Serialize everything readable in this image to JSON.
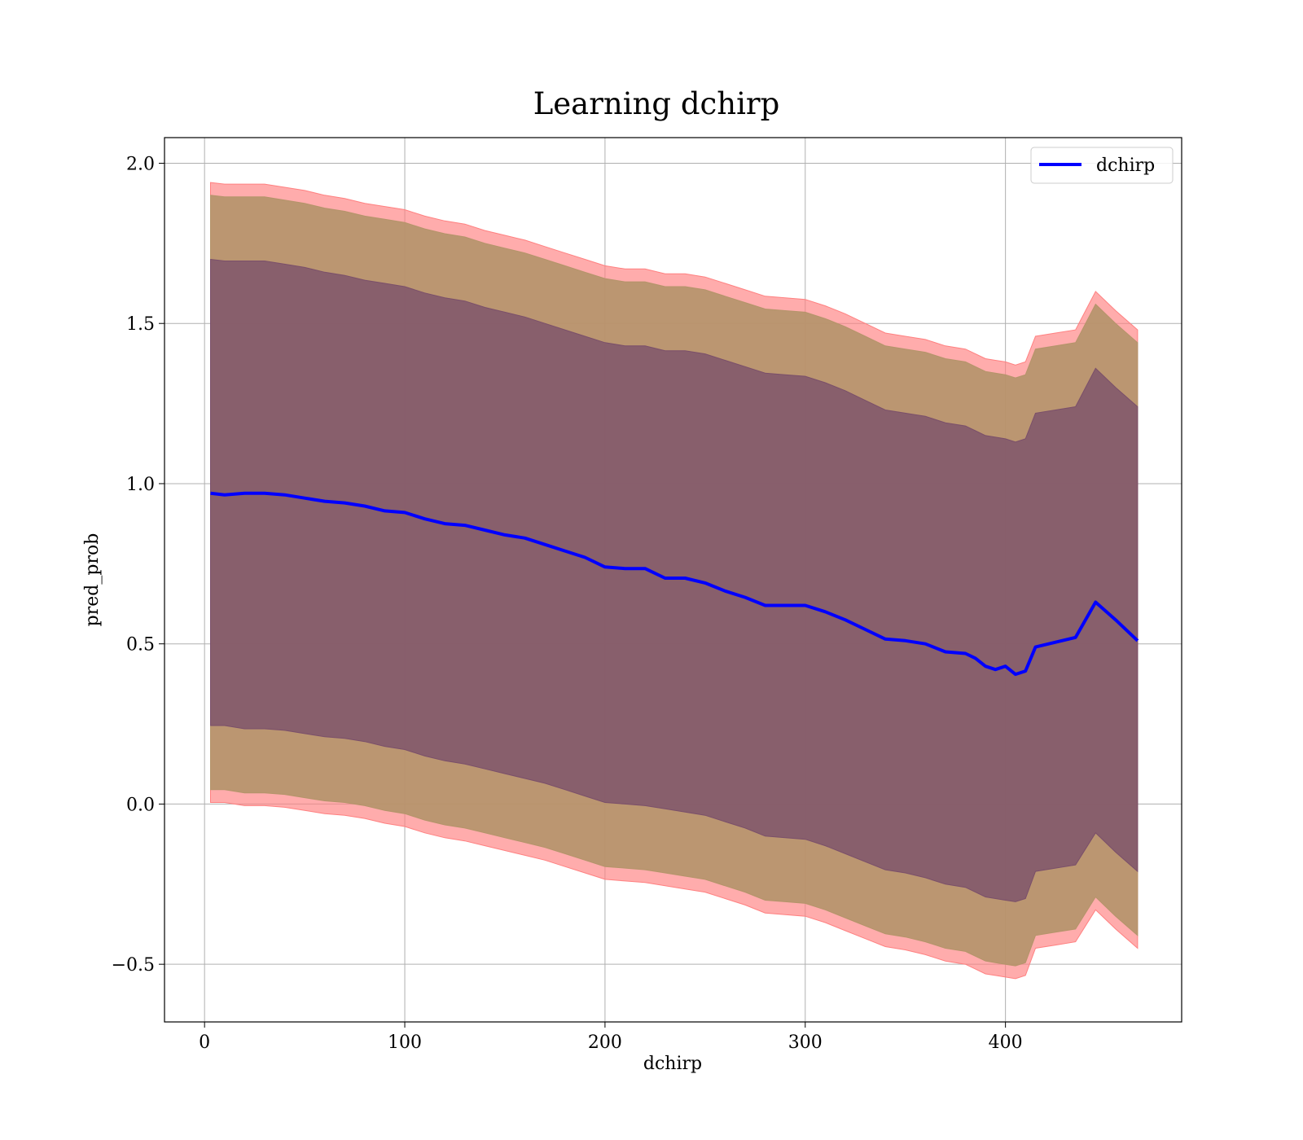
{
  "chart_data": {
    "type": "line",
    "title": "Learning dchirp",
    "xlabel": "dchirp",
    "ylabel": "pred_prob",
    "xlim": [
      -20,
      488
    ],
    "ylim": [
      -0.68,
      2.08
    ],
    "x_ticks": [
      0,
      100,
      200,
      300,
      400
    ],
    "y_ticks": [
      -0.5,
      0.0,
      0.5,
      1.0,
      1.5,
      2.0
    ],
    "x_tick_labels": [
      "0",
      "100",
      "200",
      "300",
      "400"
    ],
    "y_tick_labels": [
      "−0.5",
      "0.0",
      "0.5",
      "1.0",
      "1.5",
      "2.0"
    ],
    "grid": true,
    "legend_position": "top-right",
    "colors": {
      "line": "#0000ff",
      "band_outer": "#ff8080",
      "band_middle": "#b4946a",
      "band_inner": "#7a4f6a"
    },
    "x": [
      3,
      10,
      20,
      30,
      40,
      50,
      60,
      70,
      80,
      90,
      100,
      110,
      120,
      130,
      140,
      150,
      160,
      170,
      180,
      190,
      200,
      210,
      220,
      230,
      240,
      250,
      260,
      270,
      280,
      290,
      300,
      310,
      320,
      330,
      340,
      350,
      360,
      370,
      380,
      385,
      390,
      395,
      400,
      405,
      410,
      415,
      425,
      435,
      445,
      455,
      466
    ],
    "series": [
      {
        "name": "dchirp",
        "values": [
          0.97,
          0.965,
          0.97,
          0.97,
          0.965,
          0.955,
          0.945,
          0.94,
          0.93,
          0.915,
          0.91,
          0.89,
          0.875,
          0.87,
          0.855,
          0.84,
          0.83,
          0.81,
          0.79,
          0.77,
          0.74,
          0.735,
          0.735,
          0.705,
          0.705,
          0.69,
          0.665,
          0.645,
          0.62,
          0.62,
          0.62,
          0.6,
          0.575,
          0.545,
          0.515,
          0.51,
          0.5,
          0.475,
          0.47,
          0.455,
          0.43,
          0.42,
          0.43,
          0.405,
          0.415,
          0.49,
          0.505,
          0.52,
          0.63,
          0.575,
          0.51
        ]
      }
    ],
    "bands": [
      {
        "upper": [
          1.94,
          1.935,
          1.935,
          1.935,
          1.925,
          1.915,
          1.9,
          1.89,
          1.875,
          1.865,
          1.855,
          1.835,
          1.82,
          1.81,
          1.79,
          1.775,
          1.76,
          1.74,
          1.72,
          1.7,
          1.68,
          1.67,
          1.67,
          1.655,
          1.655,
          1.645,
          1.625,
          1.605,
          1.585,
          1.58,
          1.575,
          1.555,
          1.53,
          1.5,
          1.47,
          1.46,
          1.45,
          1.43,
          1.42,
          1.405,
          1.39,
          1.385,
          1.38,
          1.37,
          1.38,
          1.46,
          1.47,
          1.48,
          1.6,
          1.54,
          1.48
        ],
        "lower": [
          0.005,
          0.005,
          -0.005,
          -0.005,
          -0.01,
          -0.02,
          -0.03,
          -0.035,
          -0.045,
          -0.06,
          -0.07,
          -0.09,
          -0.105,
          -0.115,
          -0.13,
          -0.145,
          -0.16,
          -0.175,
          -0.195,
          -0.215,
          -0.235,
          -0.24,
          -0.245,
          -0.255,
          -0.265,
          -0.275,
          -0.295,
          -0.315,
          -0.34,
          -0.345,
          -0.35,
          -0.37,
          -0.395,
          -0.42,
          -0.445,
          -0.455,
          -0.47,
          -0.49,
          -0.5,
          -0.515,
          -0.53,
          -0.535,
          -0.54,
          -0.545,
          -0.535,
          -0.45,
          -0.44,
          -0.43,
          -0.33,
          -0.39,
          -0.45
        ]
      },
      {
        "upper": [
          1.9,
          1.895,
          1.895,
          1.895,
          1.885,
          1.875,
          1.86,
          1.85,
          1.835,
          1.825,
          1.815,
          1.795,
          1.78,
          1.77,
          1.75,
          1.735,
          1.72,
          1.7,
          1.68,
          1.66,
          1.64,
          1.63,
          1.63,
          1.615,
          1.615,
          1.605,
          1.585,
          1.565,
          1.545,
          1.54,
          1.535,
          1.515,
          1.49,
          1.46,
          1.43,
          1.42,
          1.41,
          1.39,
          1.38,
          1.365,
          1.35,
          1.345,
          1.34,
          1.33,
          1.34,
          1.42,
          1.43,
          1.44,
          1.56,
          1.5,
          1.44
        ],
        "lower": [
          0.045,
          0.045,
          0.035,
          0.035,
          0.03,
          0.02,
          0.01,
          0.005,
          -0.005,
          -0.02,
          -0.03,
          -0.05,
          -0.065,
          -0.075,
          -0.09,
          -0.105,
          -0.12,
          -0.135,
          -0.155,
          -0.175,
          -0.195,
          -0.2,
          -0.205,
          -0.215,
          -0.225,
          -0.235,
          -0.255,
          -0.275,
          -0.3,
          -0.305,
          -0.31,
          -0.33,
          -0.355,
          -0.38,
          -0.405,
          -0.415,
          -0.43,
          -0.45,
          -0.46,
          -0.475,
          -0.49,
          -0.495,
          -0.5,
          -0.505,
          -0.495,
          -0.41,
          -0.4,
          -0.39,
          -0.29,
          -0.35,
          -0.41
        ]
      },
      {
        "upper": [
          1.7,
          1.695,
          1.695,
          1.695,
          1.685,
          1.675,
          1.66,
          1.65,
          1.635,
          1.625,
          1.615,
          1.595,
          1.58,
          1.57,
          1.55,
          1.535,
          1.52,
          1.5,
          1.48,
          1.46,
          1.44,
          1.43,
          1.43,
          1.415,
          1.415,
          1.405,
          1.385,
          1.365,
          1.345,
          1.34,
          1.335,
          1.315,
          1.29,
          1.26,
          1.23,
          1.22,
          1.21,
          1.19,
          1.18,
          1.165,
          1.15,
          1.145,
          1.14,
          1.13,
          1.14,
          1.22,
          1.23,
          1.24,
          1.36,
          1.3,
          1.24
        ],
        "lower": [
          0.245,
          0.245,
          0.235,
          0.235,
          0.23,
          0.22,
          0.21,
          0.205,
          0.195,
          0.18,
          0.17,
          0.15,
          0.135,
          0.125,
          0.11,
          0.095,
          0.08,
          0.065,
          0.045,
          0.025,
          0.005,
          0.0,
          -0.005,
          -0.015,
          -0.025,
          -0.035,
          -0.055,
          -0.075,
          -0.1,
          -0.105,
          -0.11,
          -0.13,
          -0.155,
          -0.18,
          -0.205,
          -0.215,
          -0.23,
          -0.25,
          -0.26,
          -0.275,
          -0.29,
          -0.295,
          -0.3,
          -0.305,
          -0.295,
          -0.21,
          -0.2,
          -0.19,
          -0.09,
          -0.15,
          -0.21
        ]
      }
    ]
  }
}
